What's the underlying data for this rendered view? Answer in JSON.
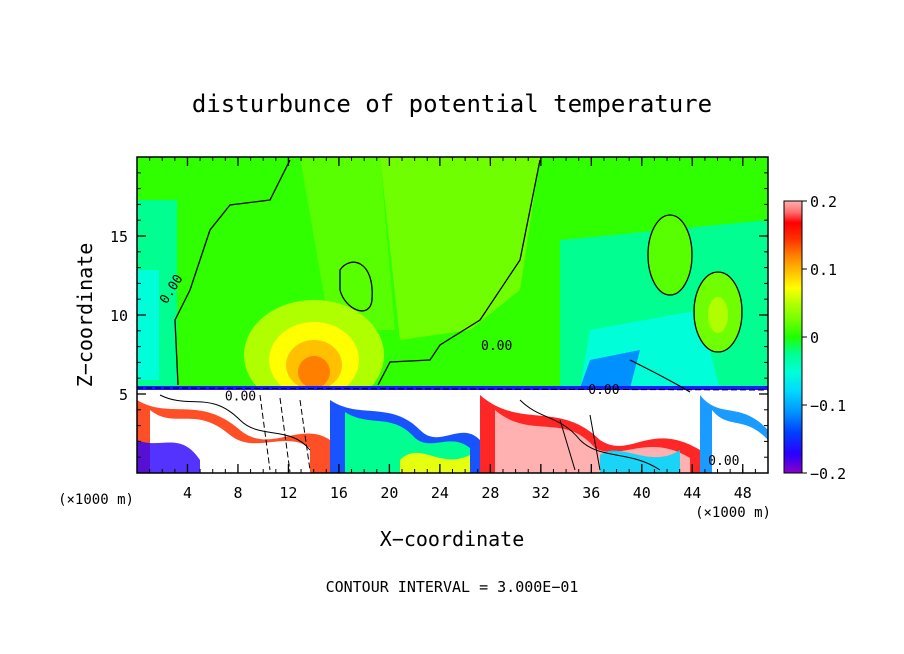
{
  "chart_data": {
    "type": "heatmap",
    "title": "disturbunce of potential temperature",
    "xlabel": "X−coordinate",
    "ylabel": "Z−coordinate",
    "x_unit": "(×1000 m)",
    "x_unit_right": "(×1000 m)",
    "footnote": "CONTOUR INTERVAL = 3.000E−01",
    "xlim": [
      0,
      50
    ],
    "ylim": [
      0,
      20
    ],
    "x_ticks": [
      4,
      8,
      12,
      16,
      20,
      24,
      28,
      32,
      36,
      40,
      44,
      48
    ],
    "y_ticks": [
      5,
      10,
      15
    ],
    "colorbar": {
      "range": [
        -0.2,
        0.2
      ],
      "tick_values": [
        0.2,
        0.1,
        0,
        -0.1,
        -0.2
      ],
      "tick_labels": [
        "0.2",
        "0.1",
        "0",
        "−0.1",
        "−0.2"
      ],
      "colors": [
        "#8a00c8",
        "#2a00ff",
        "#0040ff",
        "#0090ff",
        "#00d8ff",
        "#00ffd8",
        "#00ff90",
        "#20ff00",
        "#70ff00",
        "#b0ff00",
        "#ffff00",
        "#ffc000",
        "#ff8000",
        "#ff3000",
        "#ff0000",
        "#ff7070",
        "#ffb0b0"
      ]
    },
    "contour_labels": [
      {
        "text": "0.00",
        "x": 3,
        "y": 11.5,
        "angle": -58
      },
      {
        "text": "0.00",
        "x": 28.5,
        "y": 7.8,
        "angle": 0
      },
      {
        "text": "0.00",
        "x": 37,
        "y": 5.0,
        "angle": 0
      },
      {
        "text": "0.00",
        "x": 8.2,
        "y": 4.6,
        "angle": 0
      },
      {
        "text": "0.00",
        "x": 46.5,
        "y": 0.5,
        "angle": 0
      }
    ]
  }
}
